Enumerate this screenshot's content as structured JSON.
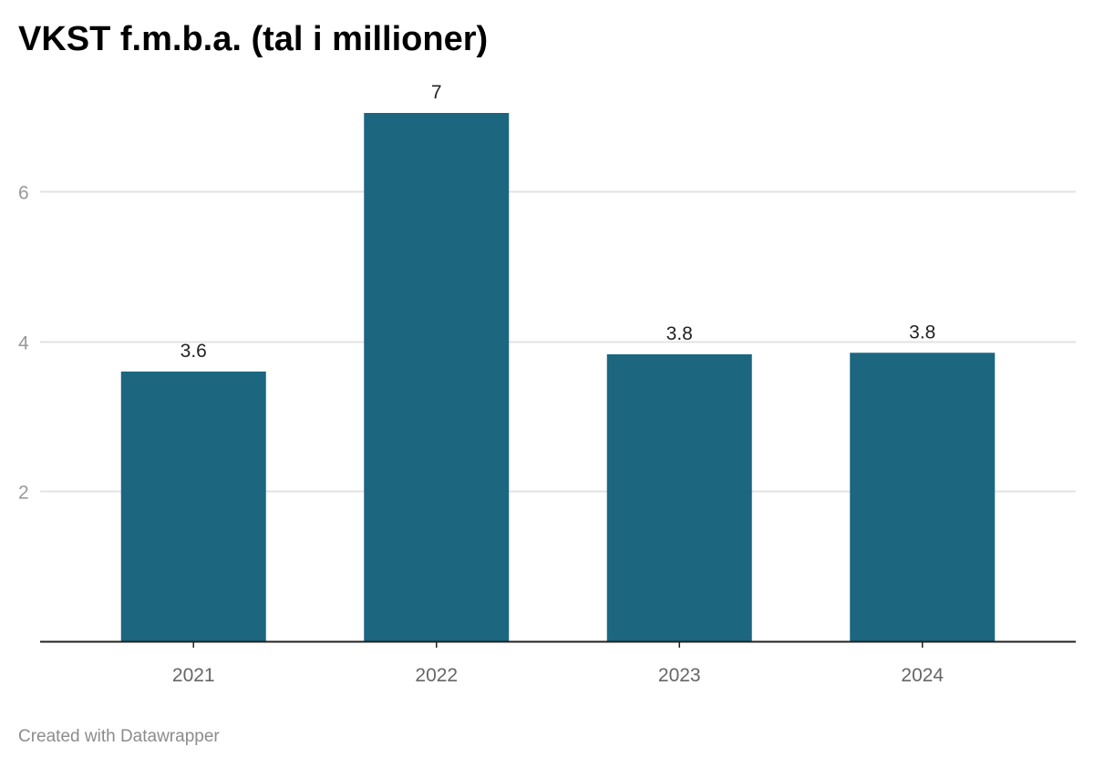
{
  "chart_data": {
    "type": "bar",
    "title": "VKST f.m.b.a. (tal i millioner)",
    "categories": [
      "2021",
      "2022",
      "2023",
      "2024"
    ],
    "values": [
      3.6,
      7.05,
      3.83,
      3.85
    ],
    "data_labels": [
      "3.6",
      "7",
      "3.8",
      "3.8"
    ],
    "y_ticks": [
      2,
      4,
      6
    ],
    "ylim": [
      0,
      7.05
    ],
    "xlabel": "",
    "ylabel": "",
    "grid": true,
    "bar_color": "#1c6680"
  },
  "footer": {
    "credit": "Created with Datawrapper"
  }
}
